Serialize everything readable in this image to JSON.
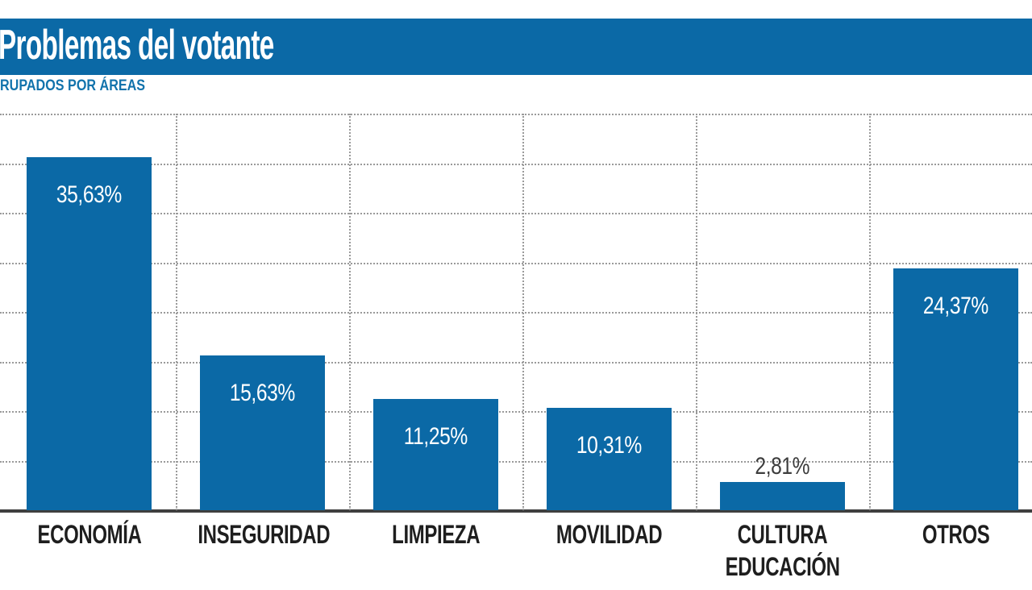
{
  "header": {
    "title": "Problemas del votante",
    "subtitle": "RUPADOS POR ÁREAS"
  },
  "chart_data": {
    "type": "bar",
    "title": "Problemas del votante",
    "subtitle": "RUPADOS POR ÁREAS",
    "categories": [
      "ECONOMÍA",
      "INSEGURIDAD",
      "LIMPIEZA",
      "MOVILIDAD",
      "CULTURA\nEDUCACIÓN",
      "OTROS"
    ],
    "values": [
      35.63,
      15.63,
      11.25,
      10.31,
      2.81,
      24.37
    ],
    "value_labels": [
      "35,63%",
      "15,63%",
      "11,25%",
      "10,31%",
      "2,81%",
      "24,37%"
    ],
    "value_label_positions": [
      "inside",
      "inside",
      "inside",
      "inside",
      "above",
      "inside"
    ],
    "unit": "%",
    "ylim": [
      0,
      40
    ],
    "grid_step": 5,
    "grid": "dotted horizontal lines every 5%, dotted vertical separators between categories, no y-axis tick labels",
    "legend": "none",
    "bar_color": "#0b69a6"
  },
  "colors": {
    "brand_blue": "#0b69a6",
    "subtitle_text": "#1273ac",
    "grid": "#9a9a9a",
    "axis": "#3f3f3f",
    "category_text": "#1e1e1e",
    "value_inside": "#ffffff",
    "value_above": "#3d3d3d",
    "background": "#ffffff"
  }
}
